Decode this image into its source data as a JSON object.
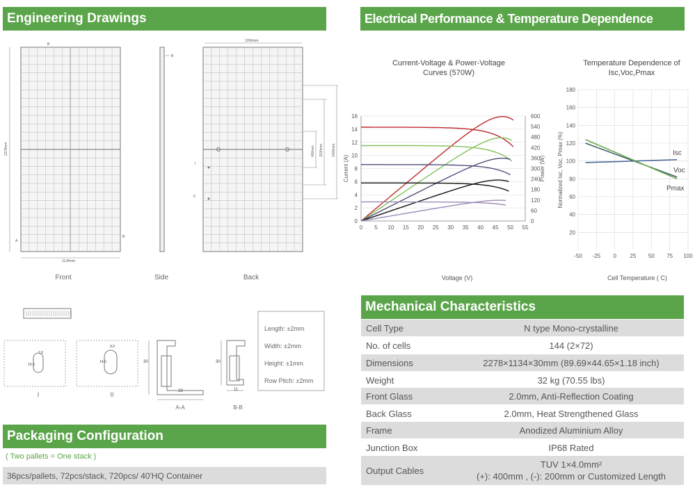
{
  "headers": {
    "engineering": "Engineering Drawings",
    "electrical": "Electrical Performance & Temperature Dependence",
    "mechanical": "Mechanical Characteristics",
    "packaging": "Packaging Configuration"
  },
  "drawings": {
    "front_label": "Front",
    "side_label": "Side",
    "back_label": "Back",
    "front_width": "1134mm",
    "front_height": "2278mm",
    "back_width": "1096mm",
    "dim_400": "400mm",
    "dim_1100": "1100mm",
    "dim_1400": "1400mm",
    "mark_a": "A",
    "mark_b": "B",
    "mark_i": "I",
    "mark_ii": "II",
    "detail_i_label": "I",
    "detail_ii_label": "II",
    "section_aa": "A-A",
    "section_bb": "B-B",
    "hole_w": "7.0",
    "hole_h": "10.0",
    "hole2_w": "9.0",
    "hole2_h": "14.0",
    "profile_h": "30",
    "profile_w_aa": "28",
    "profile_w_bb": "11",
    "tolerances": [
      "Length: ±2mm",
      "Width: ±2mm",
      "Height: ±1mm",
      "Row Pitch: ±2mm"
    ]
  },
  "chart_iv": {
    "title_line1": "Current-Voltage & Power-Voltage",
    "title_line2": "Curves (570W)",
    "xlabel": "Voltage (V)",
    "ylabel_left": "Current (A)",
    "ylabel_right": "Power (W)"
  },
  "chart_temp": {
    "title_line1": "Temperature Dependence of",
    "title_line2": "Isc,Voc,Pmax",
    "xlabel": "Cell Temperature ( C)",
    "ylabel": "Normalized Isc, Voc, Pmax (%)"
  },
  "chart_data": [
    {
      "type": "line",
      "title": "Current-Voltage & Power-Voltage Curves (570W)",
      "xlabel": "Voltage (V)",
      "ylabel": "Current (A)",
      "y2label": "Power (W)",
      "xlim": [
        0,
        55
      ],
      "ylim": [
        0,
        16
      ],
      "y2lim": [
        0,
        600
      ],
      "xticks": [
        0,
        5,
        10,
        15,
        20,
        25,
        30,
        35,
        40,
        45,
        50,
        55
      ],
      "yticks": [
        0,
        2,
        4,
        6,
        8,
        10,
        12,
        14,
        16
      ],
      "y2ticks": [
        0,
        60,
        120,
        180,
        240,
        300,
        360,
        420,
        480,
        540,
        600
      ],
      "series": [
        {
          "color": "#c0282d",
          "isc": 14.3,
          "voc": 51,
          "pmax": 570,
          "vmp": 42
        },
        {
          "color": "#82c05a",
          "isc": 11.5,
          "voc": 50.5,
          "pmax": 457,
          "vmp": 42
        },
        {
          "color": "#4f4f7a",
          "isc": 8.6,
          "voc": 50,
          "pmax": 343,
          "vmp": 42
        },
        {
          "color": "#111111",
          "isc": 5.8,
          "voc": 49.5,
          "pmax": 228,
          "vmp": 42
        },
        {
          "color": "#9b8ab5",
          "isc": 2.9,
          "voc": 48.5,
          "pmax": 114,
          "vmp": 41.5
        }
      ]
    },
    {
      "type": "line",
      "title": "Temperature Dependence of Isc,Voc,Pmax",
      "xlabel": "Cell Temperature ( C)",
      "ylabel": "Normalized Isc, Voc, Pmax (%)",
      "xlim": [
        -50,
        100
      ],
      "ylim": [
        0,
        180
      ],
      "xticks": [
        -50,
        -25,
        0,
        25,
        50,
        75,
        100
      ],
      "yticks": [
        20,
        40,
        60,
        80,
        100,
        120,
        140,
        160,
        180
      ],
      "series": [
        {
          "name": "Isc",
          "color": "#4a6a9a",
          "x": [
            -40,
            85
          ],
          "y": [
            98.2,
            101.5
          ]
        },
        {
          "name": "Voc",
          "color": "#3f5f6f",
          "x": [
            -40,
            85
          ],
          "y": [
            120,
            82
          ]
        },
        {
          "name": "Pmax",
          "color": "#6aaa4a",
          "x": [
            -40,
            85
          ],
          "y": [
            124,
            80
          ]
        }
      ]
    }
  ],
  "mechanical": [
    {
      "label": "Cell  Type",
      "value": "N type Mono-crystalline"
    },
    {
      "label": "No. of cells",
      "value": "144 (2×72)"
    },
    {
      "label": "Dimensions",
      "value": "2278×1134×30mm (89.69×44.65×1.18 inch)"
    },
    {
      "label": "Weight",
      "value": "32 kg (70.55 lbs)"
    },
    {
      "label": "Front Glass",
      "value": "2.0mm, Anti-Reflection Coating"
    },
    {
      "label": "Back Glass",
      "value": "2.0mm, Heat Strengthened Glass"
    },
    {
      "label": "Frame",
      "value": "Anodized Aluminium Alloy"
    },
    {
      "label": "Junction Box",
      "value": "IP68 Rated"
    },
    {
      "label": "Output Cables",
      "value_line1": "TUV  1×4.0mm²",
      "value_line2": "(+): 400mm , (-): 200mm or Customized Length"
    }
  ],
  "packaging": {
    "note": "( Two pallets = One stack )",
    "detail": "36pcs/pallets, 72pcs/stack, 720pcs/ 40'HQ Container"
  },
  "colors": {
    "accent": "#5aa449",
    "row_shade": "#dcdcdc"
  }
}
